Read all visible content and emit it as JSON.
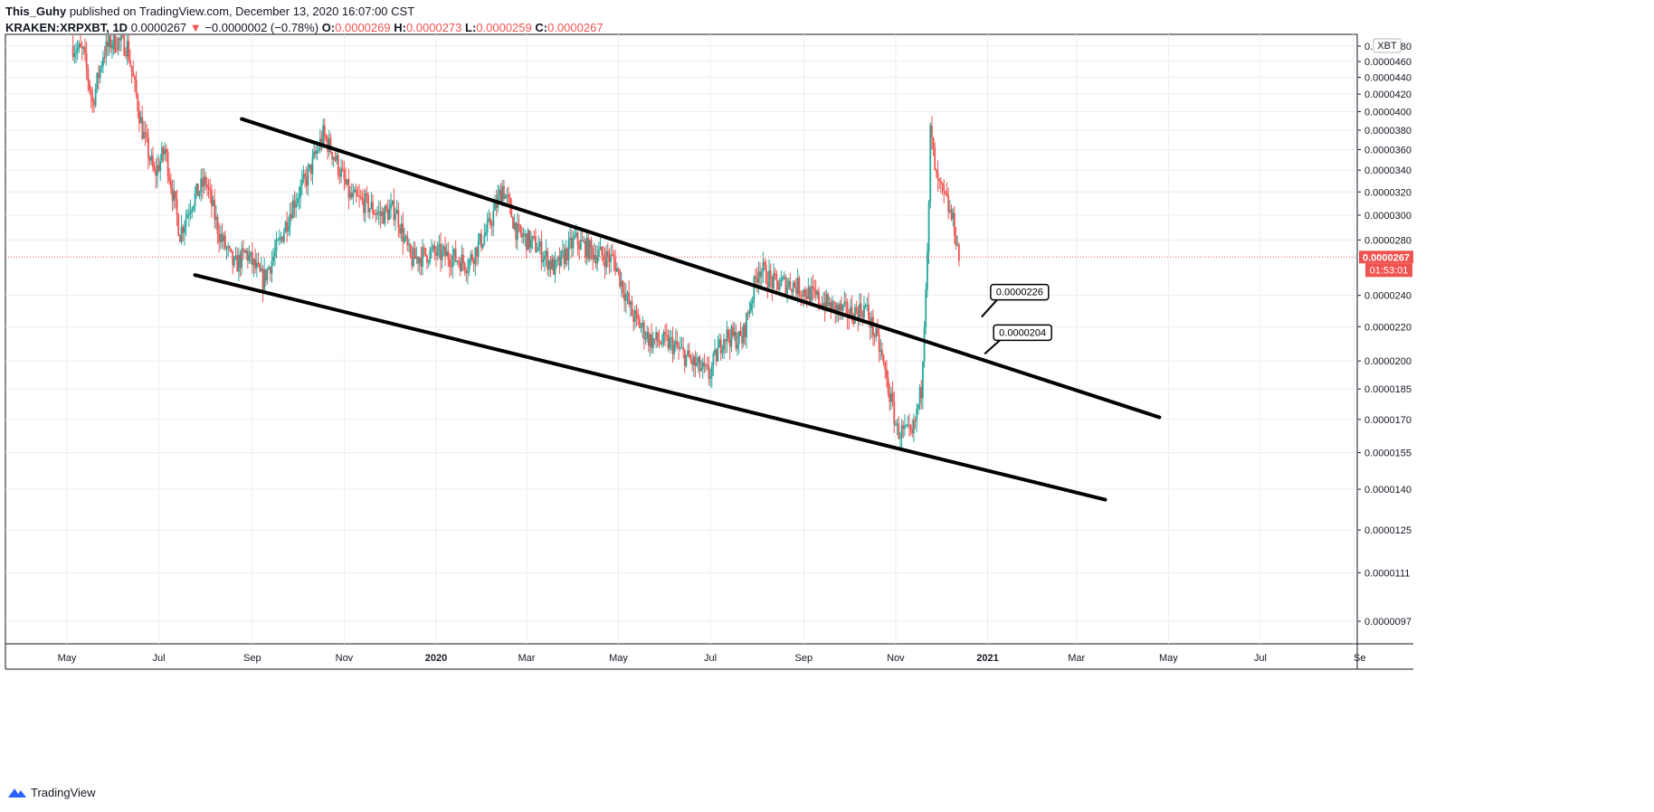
{
  "header": {
    "author": "This_Guhy",
    "published": "published on TradingView.com, December 13, 2020 16:07:00 CST",
    "symbol": "KRAKEN:XRPXBT, 1D",
    "last": "0.0000267",
    "change": "−0.0000002 (−0.78%)",
    "open_label": "O:",
    "open": "0.0000269",
    "high_label": "H:",
    "high": "0.0000273",
    "low_label": "L:",
    "low": "0.0000259",
    "close_label": "C:",
    "close": "0.0000267",
    "down_arrow": "▼"
  },
  "footer": {
    "brand": "TradingView"
  },
  "colors": {
    "up": "#26a69a",
    "down": "#ef5350",
    "grid": "#e9eef3",
    "axis": "#131722",
    "trendline": "#000000",
    "price_line": "#ef5350"
  },
  "chart_data": {
    "type": "candlestick",
    "symbol": "KRAKEN:XRPXBT",
    "interval": "1D",
    "currency_badge": "XBT",
    "x_labels": [
      "May",
      "Jul",
      "Sep",
      "Nov",
      "2020",
      "Mar",
      "May",
      "Jul",
      "Sep",
      "Nov",
      "2021",
      "Mar",
      "May",
      "Jul",
      "Se"
    ],
    "y_tick_labels": [
      "0.0000480",
      "0.0000460",
      "0.0000440",
      "0.0000420",
      "0.0000400",
      "0.0000380",
      "0.0000360",
      "0.0000340",
      "0.0000320",
      "0.0000300",
      "0.0000280",
      "0.0000240",
      "0.0000220",
      "0.0000200",
      "0.0000185",
      "0.0000170",
      "0.0000155",
      "0.0000140",
      "0.0000125",
      "0.0000111",
      "0.0000097"
    ],
    "y_tick_values": [
      4.8e-05,
      4.6e-05,
      4.4e-05,
      4.2e-05,
      4e-05,
      3.8e-05,
      3.6e-05,
      3.4e-05,
      3.2e-05,
      3e-05,
      2.8e-05,
      2.4e-05,
      2.2e-05,
      2e-05,
      1.85e-05,
      1.7e-05,
      1.55e-05,
      1.4e-05,
      1.25e-05,
      1.11e-05,
      9.7e-06
    ],
    "scale": "log",
    "ylim": [
      8.7e-06,
      4.9e-05
    ],
    "last_price": {
      "value": 2.67e-05,
      "label": "0.0000267",
      "countdown": "01:53:01"
    },
    "ohlc_path": [
      [
        "2019-05-05",
        4.8e-05
      ],
      [
        "2019-05-12",
        4.7e-05
      ],
      [
        "2019-05-18",
        4.1e-05
      ],
      [
        "2019-05-25",
        4.7e-05
      ],
      [
        "2019-06-01",
        4.9e-05
      ],
      [
        "2019-06-10",
        4.8e-05
      ],
      [
        "2019-06-20",
        3.8e-05
      ],
      [
        "2019-06-28",
        3.35e-05
      ],
      [
        "2019-07-05",
        3.6e-05
      ],
      [
        "2019-07-15",
        2.85e-05
      ],
      [
        "2019-07-22",
        3.1e-05
      ],
      [
        "2019-08-01",
        3.3e-05
      ],
      [
        "2019-08-10",
        2.85e-05
      ],
      [
        "2019-08-20",
        2.6e-05
      ],
      [
        "2019-08-28",
        2.7e-05
      ],
      [
        "2019-09-08",
        2.5e-05
      ],
      [
        "2019-09-18",
        2.75e-05
      ],
      [
        "2019-09-28",
        3.1e-05
      ],
      [
        "2019-10-08",
        3.35e-05
      ],
      [
        "2019-10-18",
        3.75e-05
      ],
      [
        "2019-10-25",
        3.55e-05
      ],
      [
        "2019-11-05",
        3.15e-05
      ],
      [
        "2019-11-15",
        3.1e-05
      ],
      [
        "2019-11-25",
        3e-05
      ],
      [
        "2019-12-05",
        3.05e-05
      ],
      [
        "2019-12-15",
        2.65e-05
      ],
      [
        "2019-12-28",
        2.7e-05
      ],
      [
        "2020-01-10",
        2.68e-05
      ],
      [
        "2020-01-22",
        2.62e-05
      ],
      [
        "2020-02-05",
        2.9e-05
      ],
      [
        "2020-02-14",
        3.25e-05
      ],
      [
        "2020-02-24",
        2.85e-05
      ],
      [
        "2020-03-08",
        2.75e-05
      ],
      [
        "2020-03-20",
        2.58e-05
      ],
      [
        "2020-04-02",
        2.8e-05
      ],
      [
        "2020-04-15",
        2.7e-05
      ],
      [
        "2020-04-28",
        2.65e-05
      ],
      [
        "2020-05-10",
        2.28e-05
      ],
      [
        "2020-05-22",
        2.12e-05
      ],
      [
        "2020-06-05",
        2.1e-05
      ],
      [
        "2020-06-18",
        2e-05
      ],
      [
        "2020-06-30",
        1.92e-05
      ],
      [
        "2020-07-10",
        2.15e-05
      ],
      [
        "2020-07-22",
        2.12e-05
      ],
      [
        "2020-08-02",
        2.6e-05
      ],
      [
        "2020-08-12",
        2.48e-05
      ],
      [
        "2020-08-24",
        2.48e-05
      ],
      [
        "2020-09-06",
        2.4e-05
      ],
      [
        "2020-09-20",
        2.32e-05
      ],
      [
        "2020-10-02",
        2.28e-05
      ],
      [
        "2020-10-12",
        2.32e-05
      ],
      [
        "2020-10-22",
        2.05e-05
      ],
      [
        "2020-11-02",
        1.65e-05
      ],
      [
        "2020-11-12",
        1.62e-05
      ],
      [
        "2020-11-18",
        1.85e-05
      ],
      [
        "2020-11-23",
        3.05e-05
      ],
      [
        "2020-11-24",
        3.8e-05
      ],
      [
        "2020-11-28",
        3.3e-05
      ],
      [
        "2020-12-05",
        3.1e-05
      ],
      [
        "2020-12-10",
        2.9e-05
      ],
      [
        "2020-12-13",
        2.67e-05
      ]
    ],
    "trendlines": [
      {
        "name": "upper",
        "from": [
          "2019-08-25",
          3.92e-05
        ],
        "to": [
          "2021-04-25",
          1.71e-05
        ]
      },
      {
        "name": "lower",
        "from": [
          "2019-07-25",
          2.54e-05
        ],
        "to": [
          "2021-03-20",
          1.36e-05
        ]
      }
    ],
    "annotations": [
      {
        "text": "0.0000226",
        "date": "2020-12-28",
        "value": 2.26e-05
      },
      {
        "text": "0.0000204",
        "date": "2020-12-30",
        "value": 2.04e-05
      }
    ]
  }
}
